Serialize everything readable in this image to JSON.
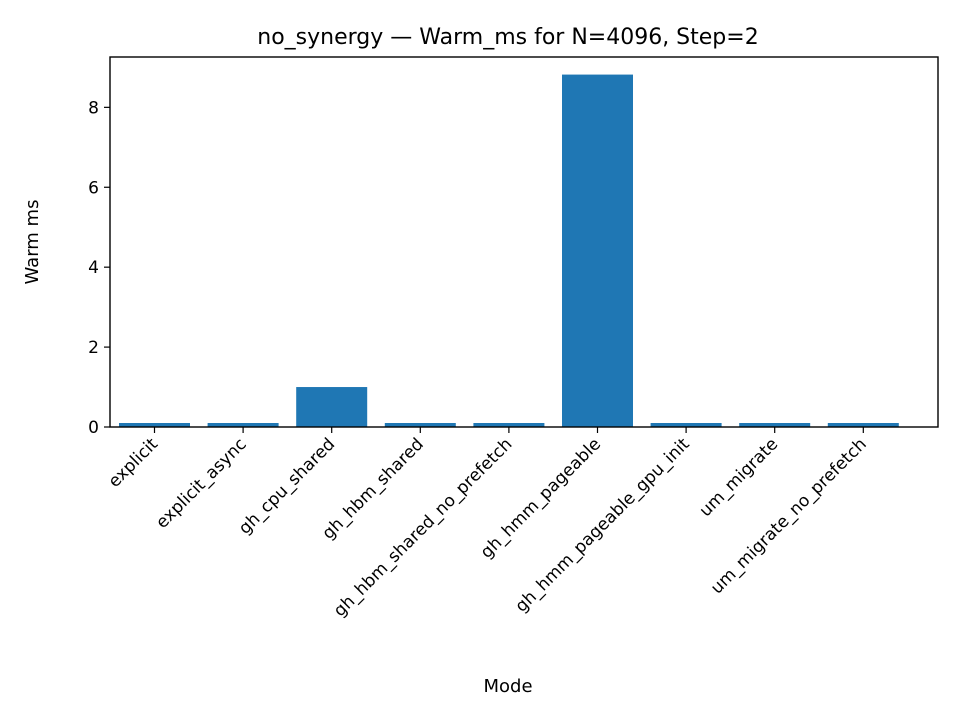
{
  "chart_data": {
    "type": "bar",
    "title": "no_synergy — Warm_ms for N=4096, Step=2",
    "xlabel": "Mode",
    "ylabel": "Warm ms",
    "categories": [
      "explicit",
      "explicit_async",
      "gh_cpu_shared",
      "gh_hbm_shared",
      "gh_hbm_shared_no_prefetch",
      "gh_hmm_pageable",
      "gh_hmm_pageable_gpu_init",
      "um_migrate",
      "um_migrate_no_prefetch"
    ],
    "values": [
      0.1,
      0.1,
      1.0,
      0.1,
      0.1,
      8.82,
      0.1,
      0.1,
      0.1
    ],
    "ylim": [
      0,
      9.26
    ],
    "yticks": [
      0,
      2,
      4,
      6,
      8
    ],
    "ytick_labels": [
      "0",
      "2",
      "4",
      "6",
      "8"
    ],
    "grid": false,
    "bar_color": "#1f77b4"
  }
}
